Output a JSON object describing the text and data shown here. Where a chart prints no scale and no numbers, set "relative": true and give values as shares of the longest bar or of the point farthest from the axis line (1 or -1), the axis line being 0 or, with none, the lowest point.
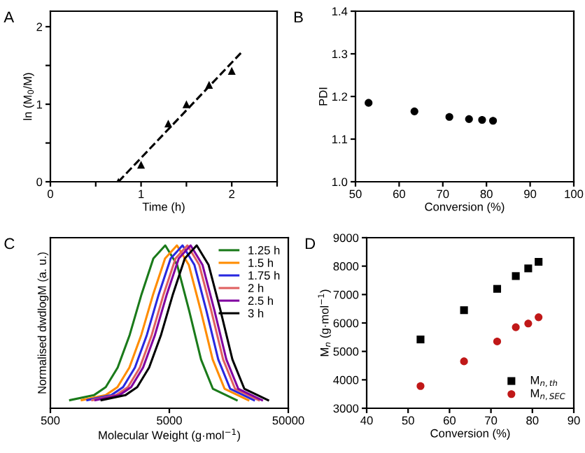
{
  "chart_data": [
    {
      "type": "scatter",
      "title": "A",
      "xlabel": "Time (h)",
      "ylabel": "ln (M$_{0}$/M)",
      "xlim": [
        0,
        2.5
      ],
      "ylim": [
        0,
        2.2
      ],
      "xticks": [
        0,
        {
          "value": 0.5,
          "label": null
        },
        1,
        {
          "value": 1.5,
          "label": null
        },
        2,
        {
          "value": 2.5,
          "label": null
        }
      ],
      "yticks": [
        0,
        {
          "value": 0.5,
          "label": null
        },
        1,
        {
          "value": 1.5,
          "label": null
        },
        2
      ],
      "grid": false,
      "legend": false,
      "series": [
        {
          "type": "scatter",
          "marker": "triangle",
          "color": "#000000",
          "x": [
            0.75,
            1.0,
            1.3,
            1.5,
            1.75,
            2.0
          ],
          "values": [
            0.0,
            0.22,
            0.75,
            1.0,
            1.25,
            1.43
          ]
        },
        {
          "type": "line",
          "marker": "none",
          "line_style": "dashed",
          "color": "#000000",
          "x": [
            0.75,
            2.1
          ],
          "values": [
            0.0,
            1.66
          ]
        }
      ]
    },
    {
      "type": "scatter",
      "title": "B",
      "xlabel": "Conversion (%)",
      "ylabel": "PDI",
      "xlim": [
        50,
        100
      ],
      "ylim": [
        1.0,
        1.4
      ],
      "xticks": [
        50,
        60,
        70,
        80,
        90,
        100
      ],
      "yticks": [
        {
          "value": 1.0,
          "label": "1.0"
        },
        1.1,
        1.2,
        1.3,
        1.4
      ],
      "grid": false,
      "legend": false,
      "marker": "circle",
      "series": [
        {
          "color": "#000000",
          "x": [
            53,
            63.5,
            71.5,
            76,
            79,
            81.5
          ],
          "values": [
            1.185,
            1.165,
            1.152,
            1.147,
            1.145,
            1.143
          ]
        }
      ]
    },
    {
      "type": "line",
      "title": "C",
      "xlabel": "Molecular Weight (g·mol$^{−1}$)",
      "ylabel": "Normalised dwdlogM (a. u.)",
      "log": "x",
      "relative": true,
      "xlim": [
        500,
        50000
      ],
      "xticks": [
        500,
        5000,
        50000
      ],
      "grid": false,
      "legend": "top right",
      "marker": "none",
      "series": [
        {
          "name": "1.25 h",
          "color": "#1a7a1a",
          "x": [
            733,
            1160,
            1460,
            1840,
            2320,
            2920,
            3670,
            4620,
            5820,
            7330,
            9230,
            11600,
            18400
          ],
          "values": [
            0.05,
            0.08,
            0.13,
            0.25,
            0.45,
            0.7,
            0.92,
            1.0,
            0.88,
            0.6,
            0.3,
            0.12,
            0.05
          ]
        },
        {
          "name": "1.5 h",
          "color": "#ff8c00",
          "x": [
            918,
            1455,
            1832,
            2307,
            2904,
            3656,
            4603,
            5794,
            7295,
            9183,
            11561,
            14555,
            23067
          ],
          "values": [
            0.05,
            0.08,
            0.13,
            0.25,
            0.45,
            0.7,
            0.92,
            1.0,
            0.88,
            0.6,
            0.3,
            0.12,
            0.05
          ]
        },
        {
          "name": "1.75 h",
          "color": "#2828e0",
          "x": [
            1023,
            1622,
            2042,
            2570,
            3236,
            4074,
            5129,
            6457,
            8128,
            10233,
            12882,
            16218,
            25704
          ],
          "values": [
            0.05,
            0.08,
            0.13,
            0.25,
            0.45,
            0.7,
            0.92,
            1.0,
            0.88,
            0.6,
            0.3,
            0.12,
            0.05
          ]
        },
        {
          "name": "2 h",
          "color": "#e06060",
          "x": [
            1125,
            1782,
            2244,
            2825,
            3556,
            4477,
            5636,
            7096,
            8933,
            11246,
            14158,
            17824,
            28249
          ],
          "values": [
            0.05,
            0.08,
            0.13,
            0.25,
            0.45,
            0.7,
            0.92,
            1.0,
            0.88,
            0.6,
            0.3,
            0.12,
            0.05
          ]
        },
        {
          "name": "2.5 h",
          "color": "#8000a0",
          "x": [
            1197,
            1897,
            2388,
            3006,
            3784,
            4764,
            5998,
            7551,
            9506,
            11967,
            15066,
            18967,
            30061
          ],
          "values": [
            0.05,
            0.08,
            0.13,
            0.25,
            0.45,
            0.7,
            0.92,
            1.0,
            0.88,
            0.6,
            0.3,
            0.12,
            0.05
          ]
        },
        {
          "name": "3 h",
          "color": "#000000",
          "x": [
            1346,
            2133,
            2685,
            3381,
            4256,
            5358,
            6745,
            8492,
            10691,
            13459,
            16943,
            21330,
            33806
          ],
          "values": [
            0.05,
            0.08,
            0.13,
            0.25,
            0.45,
            0.7,
            0.92,
            1.0,
            0.88,
            0.6,
            0.3,
            0.12,
            0.05
          ]
        }
      ]
    },
    {
      "type": "scatter",
      "title": "D",
      "xlabel": "Conversion (%)",
      "ylabel": "M$_{n}$ (g·mol$^{−1}$)",
      "xlim": [
        40,
        90
      ],
      "ylim": [
        3000,
        9000
      ],
      "xticks": [
        40,
        50,
        60,
        70,
        80,
        90
      ],
      "yticks": [
        3000,
        4000,
        5000,
        6000,
        7000,
        8000,
        9000
      ],
      "grid": false,
      "legend": "bottom right",
      "series": [
        {
          "name": "M$_{n,th}$",
          "marker": "square",
          "color": "#000000",
          "x": [
            53,
            63.5,
            71.5,
            76,
            79,
            81.5
          ],
          "values": [
            5420,
            6450,
            7200,
            7650,
            7920,
            8150
          ]
        },
        {
          "name": "M$_{n,SEC}$",
          "marker": "circle",
          "color": "#c01818",
          "x": [
            53,
            63.5,
            71.5,
            76,
            79,
            81.5
          ],
          "values": [
            3780,
            4650,
            5350,
            5850,
            5980,
            6200
          ]
        }
      ]
    }
  ]
}
